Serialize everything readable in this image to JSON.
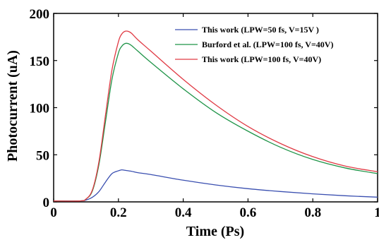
{
  "chart_data": {
    "type": "line",
    "xlabel": "Time (Ps)",
    "ylabel": "Photocurrent (uA)",
    "xlim": [
      0,
      1
    ],
    "ylim": [
      0,
      200
    ],
    "xticks": [
      0,
      0.2,
      0.4,
      0.6,
      0.8,
      1
    ],
    "yticks": [
      0,
      50,
      100,
      150,
      200
    ],
    "xtick_labels": [
      "0",
      "0.2",
      "0.4",
      "0.6",
      "0.8",
      "1"
    ],
    "ytick_labels": [
      "0",
      "50",
      "100",
      "150",
      "200"
    ],
    "grid": false,
    "legend_position": "top-right",
    "series": [
      {
        "name": "This work (LPW=50 fs, V=15V )",
        "color": "#3a4fb0",
        "x": [
          0,
          0.08,
          0.1,
          0.12,
          0.14,
          0.16,
          0.18,
          0.2,
          0.21,
          0.22,
          0.24,
          0.26,
          0.3,
          0.4,
          0.5,
          0.6,
          0.7,
          0.8,
          0.9,
          1.0
        ],
        "y": [
          1,
          1,
          2,
          5,
          11,
          21,
          30,
          33,
          34,
          33.5,
          32.5,
          31,
          29,
          23,
          18,
          14,
          11,
          8.5,
          6.5,
          5
        ]
      },
      {
        "name": "Burford et al. (LPW=100 fs, V=40V)",
        "color": "#1f9448",
        "x": [
          0,
          0.08,
          0.1,
          0.12,
          0.14,
          0.16,
          0.18,
          0.2,
          0.21,
          0.22,
          0.23,
          0.24,
          0.26,
          0.3,
          0.4,
          0.5,
          0.6,
          0.7,
          0.8,
          0.9,
          1.0
        ],
        "y": [
          1,
          1,
          3,
          12,
          40,
          85,
          130,
          158,
          165,
          168,
          168,
          166,
          160,
          148,
          120,
          95,
          75,
          58,
          45,
          36,
          30
        ]
      },
      {
        "name": "This work (LPW=100 fs, V=40V)",
        "color": "#e03a44",
        "x": [
          0,
          0.08,
          0.1,
          0.12,
          0.14,
          0.16,
          0.18,
          0.2,
          0.21,
          0.22,
          0.23,
          0.24,
          0.26,
          0.3,
          0.4,
          0.5,
          0.6,
          0.7,
          0.8,
          0.9,
          1.0
        ],
        "y": [
          1,
          1,
          3,
          13,
          43,
          92,
          140,
          170,
          178,
          181,
          181,
          179,
          172,
          160,
          130,
          103,
          80,
          62,
          48,
          38,
          32
        ]
      }
    ]
  }
}
